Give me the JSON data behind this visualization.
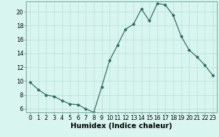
{
  "x": [
    0,
    1,
    2,
    3,
    4,
    5,
    6,
    7,
    8,
    9,
    10,
    11,
    12,
    13,
    14,
    15,
    16,
    17,
    18,
    19,
    20,
    21,
    22,
    23
  ],
  "y": [
    9.8,
    8.8,
    8.0,
    7.8,
    7.2,
    6.7,
    6.6,
    6.0,
    5.5,
    9.2,
    13.0,
    15.2,
    17.5,
    18.2,
    20.4,
    18.7,
    21.2,
    21.0,
    19.5,
    16.5,
    14.5,
    13.5,
    12.3,
    10.8
  ],
  "line_color": "#2e6b5e",
  "marker": "o",
  "marker_size": 2.5,
  "bg_color": "#d8f5f0",
  "grid_color": "#b8ddd8",
  "xlabel": "Humidex (Indice chaleur)",
  "xlim": [
    -0.5,
    23.5
  ],
  "ylim": [
    5.5,
    21.5
  ],
  "yticks": [
    6,
    8,
    10,
    12,
    14,
    16,
    18,
    20
  ],
  "xticks": [
    0,
    1,
    2,
    3,
    4,
    5,
    6,
    7,
    8,
    9,
    10,
    11,
    12,
    13,
    14,
    15,
    16,
    17,
    18,
    19,
    20,
    21,
    22,
    23
  ],
  "tick_fontsize": 6,
  "xlabel_fontsize": 7.5,
  "spine_color": "#7aada0"
}
